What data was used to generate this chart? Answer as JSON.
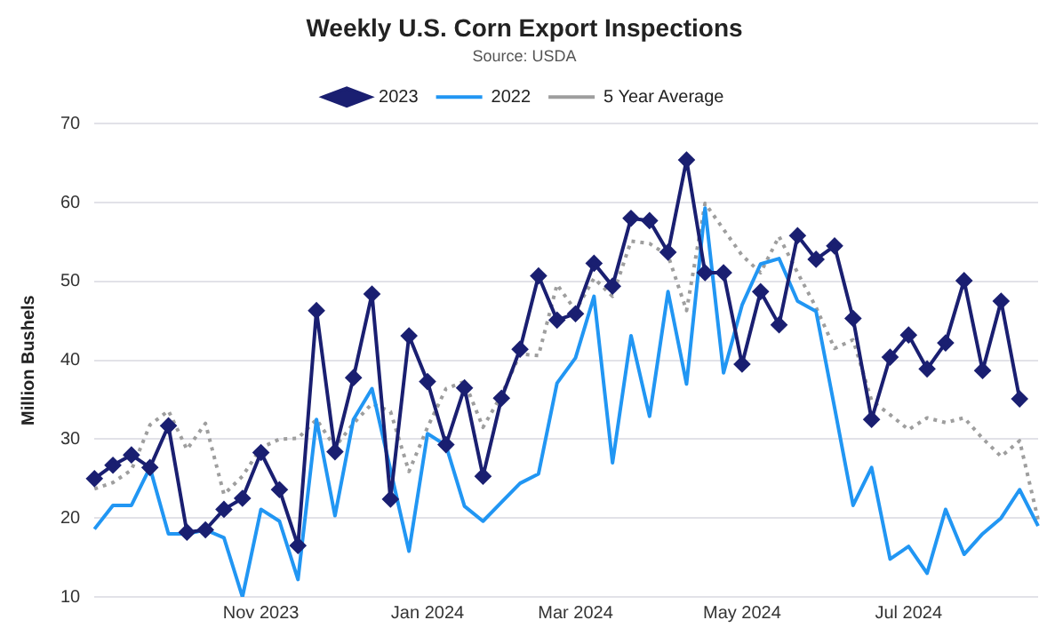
{
  "chart_data": {
    "type": "line",
    "title": "Weekly U.S. Corn Export Inspections",
    "subtitle": "Source: USDA",
    "ylabel": "Million Bushels",
    "categories": [
      null,
      null,
      null,
      null,
      null,
      null,
      null,
      null,
      null,
      "Nov 2023",
      null,
      null,
      null,
      null,
      null,
      null,
      null,
      null,
      "Jan 2024",
      null,
      null,
      null,
      null,
      null,
      null,
      null,
      "Mar 2024",
      null,
      null,
      null,
      null,
      null,
      null,
      null,
      null,
      "May 2024",
      null,
      null,
      null,
      null,
      null,
      null,
      null,
      null,
      "Jul 2024",
      null,
      null,
      null,
      null,
      null,
      null,
      null
    ],
    "ylim": [
      10,
      70
    ],
    "yticks": [
      10,
      20,
      30,
      40,
      50,
      60,
      70
    ],
    "grid": "y",
    "legend": "top",
    "series": [
      {
        "name": "2023",
        "color": "#1a1f71",
        "marker": "diamond",
        "line_style": "solid",
        "values": [
          25.0,
          26.7,
          28.0,
          26.4,
          31.7,
          18.2,
          18.5,
          21.1,
          22.5,
          28.3,
          23.6,
          16.5,
          46.3,
          28.4,
          37.8,
          48.4,
          22.4,
          43.1,
          37.3,
          29.3,
          36.5,
          25.3,
          35.2,
          41.4,
          50.7,
          45.1,
          45.9,
          52.3,
          49.4,
          58.0,
          57.7,
          53.7,
          65.4,
          51.1,
          51.1,
          39.5,
          48.7,
          44.5,
          55.8,
          52.8,
          54.5,
          45.3,
          32.5,
          40.4,
          43.2,
          38.9,
          42.2,
          50.1,
          38.7,
          47.5,
          35.1,
          null
        ]
      },
      {
        "name": "2022",
        "color": "#2196f3",
        "marker": "none",
        "line_style": "solid",
        "values": [
          18.6,
          21.6,
          21.6,
          26.4,
          18.0,
          18.0,
          18.5,
          17.5,
          10.0,
          21.1,
          19.6,
          12.2,
          32.5,
          20.3,
          32.5,
          36.4,
          26.1,
          15.8,
          30.7,
          29.2,
          21.5,
          19.6,
          22.0,
          24.4,
          25.6,
          37.1,
          40.3,
          48.1,
          27.0,
          43.1,
          32.9,
          48.7,
          37.0,
          59.3,
          38.4,
          47.0,
          52.2,
          52.9,
          47.5,
          46.2,
          34.0,
          21.6,
          26.4,
          14.8,
          16.4,
          13.0,
          21.1,
          15.4,
          18.0,
          20.0,
          23.6,
          19.0
        ]
      },
      {
        "name": "5 Year Average",
        "color": "#9e9e9e",
        "marker": "none",
        "line_style": "dotted",
        "values": [
          23.7,
          24.5,
          26.1,
          31.8,
          33.6,
          28.7,
          32.0,
          23.0,
          25.3,
          28.9,
          30.0,
          30.1,
          32.5,
          29.0,
          32.0,
          34.5,
          33.5,
          25.9,
          31.5,
          36.4,
          37.3,
          31.5,
          35.6,
          40.8,
          40.6,
          49.6,
          46.3,
          50.4,
          48.1,
          55.1,
          54.8,
          53.3,
          46.3,
          59.9,
          56.6,
          53.3,
          51.1,
          55.7,
          51.1,
          46.7,
          41.5,
          42.6,
          34.9,
          33.1,
          31.2,
          32.7,
          32.1,
          32.7,
          30.1,
          27.8,
          29.8,
          19.8
        ]
      }
    ]
  }
}
